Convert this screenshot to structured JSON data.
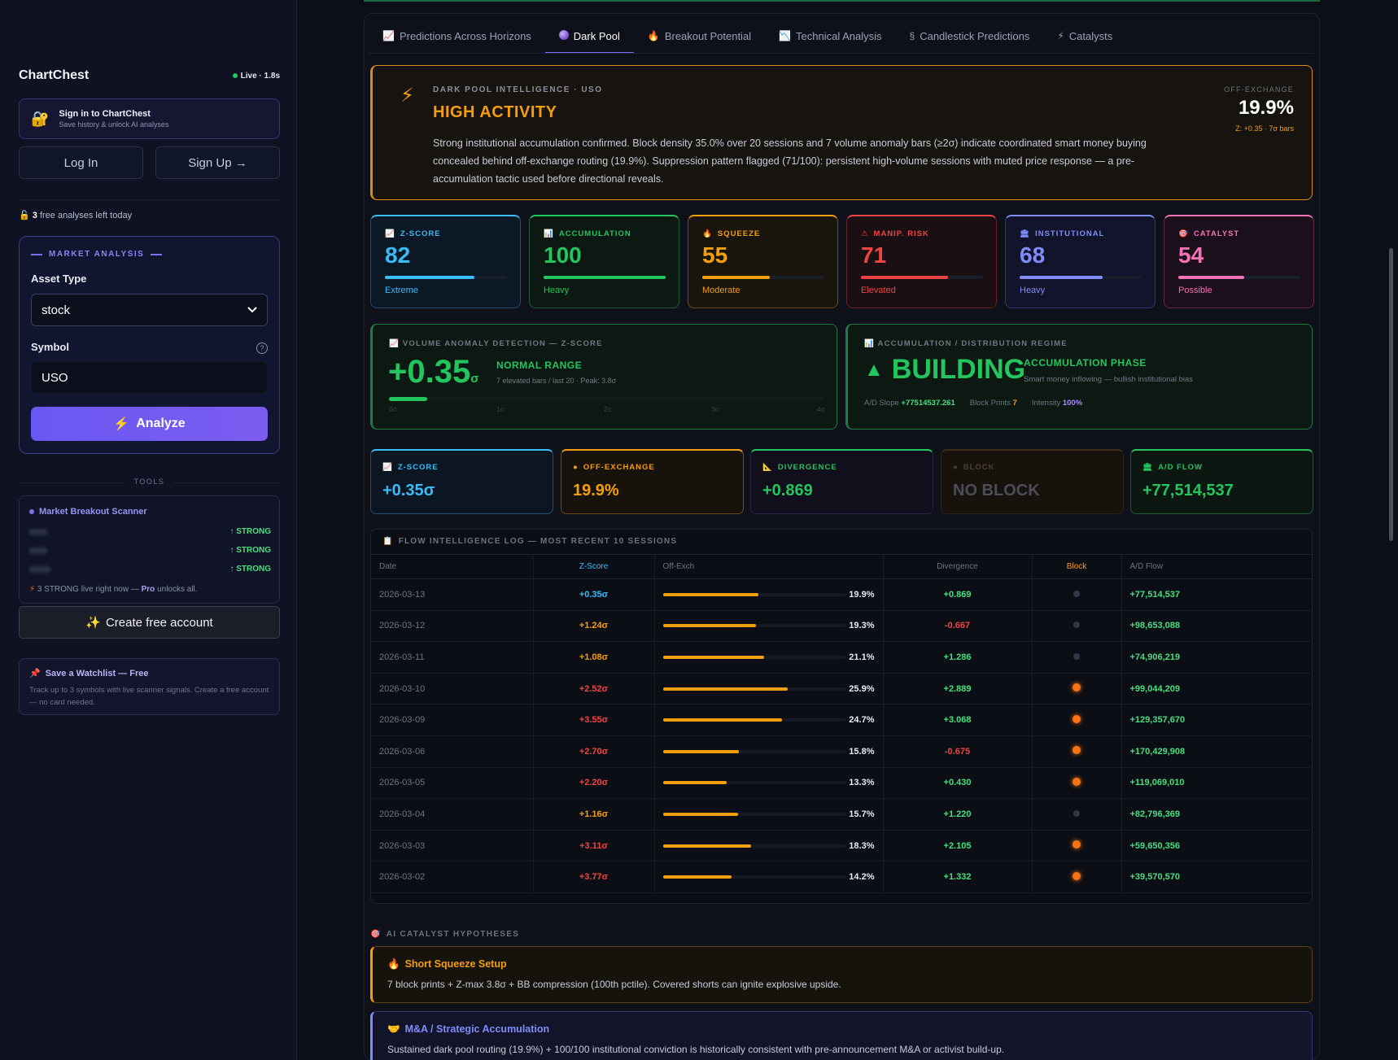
{
  "sidebar": {
    "brand": "ChartChest",
    "live": "Live · 1.8s",
    "signin": {
      "title": "Sign in to ChartChest",
      "subtitle": "Save history & unlock AI analyses",
      "icon": "lock-icon"
    },
    "login_label": "Log In",
    "signup_label": "Sign Up →",
    "free_count": "3",
    "free_text": " free analyses left today",
    "market_analysis": {
      "heading": "MARKET ANALYSIS",
      "asset_type_label": "Asset Type",
      "asset_type_value": "stock",
      "symbol_label": "Symbol",
      "symbol_value": "USO",
      "analyze_label": "Analyze"
    },
    "tools_label": "TOOLS",
    "scanner": {
      "title": "Market Breakout Scanner",
      "rows": [
        "↑ STRONG",
        "↑ STRONG",
        "↑ STRONG"
      ],
      "footer_prefix": "3 STRONG live right now — ",
      "footer_pro": "Pro",
      "footer_suffix": " unlocks all."
    },
    "create_account_label": "Create free account",
    "watchlist": {
      "title": "Save a Watchlist — Free",
      "desc": "Track up to 3 symbols with live scanner signals. Create a free account — no card needed."
    }
  },
  "tabs": [
    {
      "label": "Predictions Across Horizons",
      "icon": "📈"
    },
    {
      "label": "Dark Pool",
      "icon": "●"
    },
    {
      "label": "Breakout Potential",
      "icon": "🔥"
    },
    {
      "label": "Technical Analysis",
      "icon": "📉"
    },
    {
      "label": "Candlestick Predictions",
      "icon": "§"
    },
    {
      "label": "Catalysts",
      "icon": "⚡"
    }
  ],
  "hero": {
    "kicker": "DARK POOL INTELLIGENCE · USO",
    "headline": "HIGH ACTIVITY",
    "desc": "Strong institutional accumulation confirmed. Block density 35.0% over 20 sessions and 7 volume anomaly bars (≥2σ) indicate coordinated smart money buying concealed behind off-exchange routing (19.9%). Suppression pattern flagged (71/100): persistent high-volume sessions with muted price response — a pre-accumulation tactic used before directional reveals.",
    "off_label": "OFF-EXCHANGE",
    "off_value": "19.9%",
    "off_sub": "Z: +0.35 · 7σ bars"
  },
  "metrics": [
    {
      "label": "Z-SCORE",
      "value": "82",
      "level": 0.73,
      "sub": "Extreme",
      "icon": "📈",
      "color": "#38bdf8",
      "bg": "#0d1826",
      "border": "#1f4e6e"
    },
    {
      "label": "ACCUMULATION",
      "value": "100",
      "level": 1.0,
      "sub": "Heavy",
      "icon": "📊",
      "color": "#22c55e",
      "bg": "#0c1912",
      "border": "#1d5a34"
    },
    {
      "label": "SQUEEZE",
      "value": "55",
      "level": 0.55,
      "sub": "Moderate",
      "icon": "🔥",
      "color": "#f59e0b",
      "bg": "#19140c",
      "border": "#6a4a16"
    },
    {
      "label": "MANIP. RISK",
      "value": "71",
      "level": 0.71,
      "sub": "Elevated",
      "icon": "⚠",
      "color": "#ef4444",
      "bg": "#1a0f12",
      "border": "#6a2226"
    },
    {
      "label": "INSTITUTIONAL",
      "value": "68",
      "level": 0.68,
      "sub": "Heavy",
      "icon": "🏛",
      "color": "#818cf8",
      "bg": "#11142a",
      "border": "#33386e"
    },
    {
      "label": "CATALYST",
      "value": "54",
      "level": 0.54,
      "sub": "Possible",
      "icon": "🎯",
      "color": "#f472b6",
      "bg": "#1a0f1a",
      "border": "#6a2452"
    }
  ],
  "volume": {
    "label": "VOLUME ANOMALY DETECTION — Z-SCORE",
    "value": "+0.35",
    "unit": "σ",
    "status": "NORMAL RANGE",
    "sub": "7 elevated bars / last 20 · Peak: 3.8σ",
    "level": 0.0875,
    "ticks": [
      "0σ",
      "1σ",
      "2σ",
      "3σ",
      "4σ"
    ]
  },
  "regime": {
    "label": "ACCUMULATION / DISTRIBUTION REGIME",
    "value": "BUILDING",
    "phase": "ACCUMULATION PHASE",
    "sub": "Smart money inflowing — bullish institutional bias",
    "slope_label": "A/D Slope",
    "slope_value": "+77514537.261",
    "block_label": "Block Prints",
    "block_value": "7",
    "intensity_label": "Intensity",
    "intensity_value": "100%"
  },
  "minis": [
    {
      "label": "Z-SCORE",
      "value": "+0.35σ",
      "icon": "📈",
      "color": "#38bdf8",
      "lblcolor": "#38bdf8",
      "bg": "#0c1522",
      "border": "#1f4e6e"
    },
    {
      "label": "OFF-EXCHANGE",
      "value": "19.9%",
      "icon": "●",
      "color": "#f59e0b",
      "lblcolor": "#f59e0b",
      "bg": "#17130c",
      "border": "#6a4a16"
    },
    {
      "label": "DIVERGENCE",
      "value": "+0.869",
      "icon": "📐",
      "color": "#22c55e",
      "lblcolor": "#22c55e",
      "bg": "#120f1c",
      "border": "#2a2440"
    },
    {
      "label": "BLOCK",
      "value": "NO BLOCK",
      "icon": "●",
      "color": "#4a4d58",
      "lblcolor": "#4a4038",
      "bg": "#17120c",
      "border": "#2a2218"
    },
    {
      "label": "A/D FLOW",
      "value": "+77,514,537",
      "icon": "🏛",
      "color": "#22c55e",
      "lblcolor": "#22c55e",
      "bg": "#0b1710",
      "border": "#1d5a34"
    }
  ],
  "log": {
    "title": "FLOW INTELLIGENCE LOG — MOST RECENT 10 SESSIONS",
    "columns": [
      "Date",
      "Z-Score",
      "Off-Exch",
      "Divergence",
      "Block",
      "A/D Flow"
    ],
    "rows": [
      {
        "date": "2026-03-13",
        "z": "+0.35σ",
        "zc": "#38bdf8",
        "off": "19.9%",
        "offv": 0.199,
        "div": "+0.869",
        "divc": "#4ade80",
        "block": false,
        "ad": "+77,514,537"
      },
      {
        "date": "2026-03-12",
        "z": "+1.24σ",
        "zc": "#f59e0b",
        "off": "19.3%",
        "offv": 0.193,
        "div": "-0.667",
        "divc": "#ef4444",
        "block": false,
        "ad": "+98,653,088"
      },
      {
        "date": "2026-03-11",
        "z": "+1.08σ",
        "zc": "#f59e0b",
        "off": "21.1%",
        "offv": 0.211,
        "div": "+1.286",
        "divc": "#4ade80",
        "block": false,
        "ad": "+74,906,219"
      },
      {
        "date": "2026-03-10",
        "z": "+2.52σ",
        "zc": "#ef4444",
        "off": "25.9%",
        "offv": 0.259,
        "div": "+2.889",
        "divc": "#4ade80",
        "block": true,
        "ad": "+99,044,209"
      },
      {
        "date": "2026-03-09",
        "z": "+3.55σ",
        "zc": "#ef4444",
        "off": "24.7%",
        "offv": 0.247,
        "div": "+3.068",
        "divc": "#4ade80",
        "block": true,
        "ad": "+129,357,670"
      },
      {
        "date": "2026-03-06",
        "z": "+2.70σ",
        "zc": "#ef4444",
        "off": "15.8%",
        "offv": 0.158,
        "div": "-0.675",
        "divc": "#ef4444",
        "block": true,
        "ad": "+170,429,908"
      },
      {
        "date": "2026-03-05",
        "z": "+2.20σ",
        "zc": "#ef4444",
        "off": "13.3%",
        "offv": 0.133,
        "div": "+0.430",
        "divc": "#4ade80",
        "block": true,
        "ad": "+119,069,010"
      },
      {
        "date": "2026-03-04",
        "z": "+1.16σ",
        "zc": "#f59e0b",
        "off": "15.7%",
        "offv": 0.157,
        "div": "+1.220",
        "divc": "#4ade80",
        "block": false,
        "ad": "+82,796,369"
      },
      {
        "date": "2026-03-03",
        "z": "+3.11σ",
        "zc": "#ef4444",
        "off": "18.3%",
        "offv": 0.183,
        "div": "+2.105",
        "divc": "#4ade80",
        "block": true,
        "ad": "+59,650,356"
      },
      {
        "date": "2026-03-02",
        "z": "+3.77σ",
        "zc": "#ef4444",
        "off": "14.2%",
        "offv": 0.142,
        "div": "+1.332",
        "divc": "#4ade80",
        "block": true,
        "ad": "+39,570,570"
      }
    ]
  },
  "catalysts": {
    "heading": "AI CATALYST HYPOTHESES",
    "items": [
      {
        "title": "Short Squeeze Setup",
        "icon": "🔥",
        "desc": "7 block prints + Z-max 3.8σ + BB compression (100th pctile). Covered shorts can ignite explosive upside.",
        "color": "#f59e0b",
        "bg": "#16130d",
        "border": "#5a4014"
      },
      {
        "title": "M&A / Strategic Accumulation",
        "icon": "🤝",
        "desc": "Sustained dark pool routing (19.9%) + 100/100 institutional conviction is historically consistent with pre-announcement M&A or activist build-up.",
        "color": "#818cf8",
        "bg": "#12142a",
        "border": "#33386e"
      }
    ]
  }
}
